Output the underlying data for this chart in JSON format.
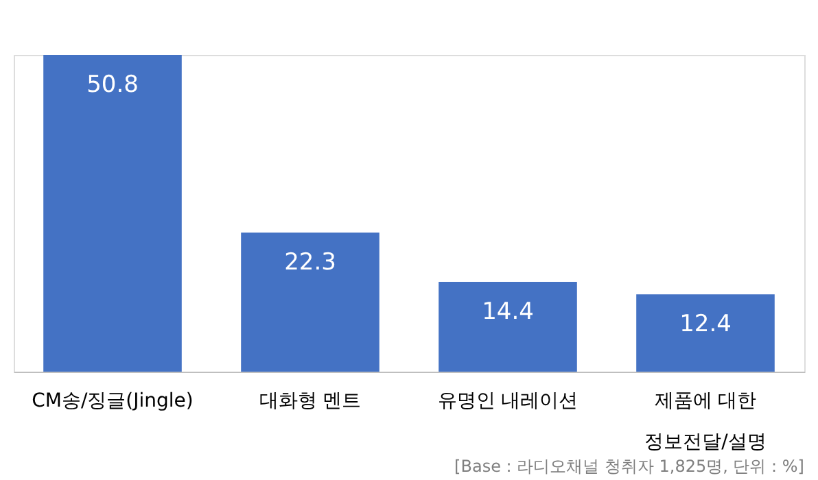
{
  "chart_data": {
    "type": "bar",
    "categories": [
      "CM송/징글(Jingle)",
      "대화형 멘트",
      "유명인 내레이션",
      "제품에 대한\n정보전달/설명"
    ],
    "values": [
      50.8,
      22.3,
      14.4,
      12.4
    ],
    "color": "#4472c4",
    "data_labels": true,
    "grid": false,
    "tick_labels": "x",
    "annotations": [
      "[Base : 라디오채널 청취자 1,825명, 단위 : %]"
    ]
  }
}
